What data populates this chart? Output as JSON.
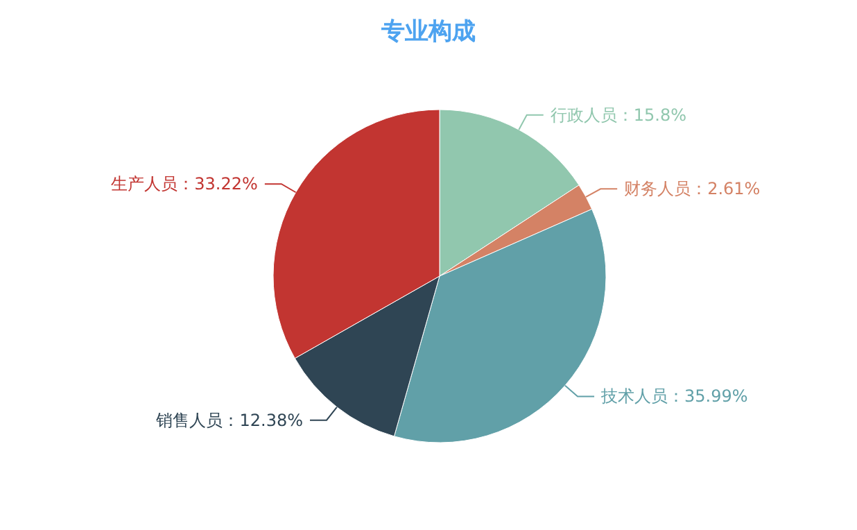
{
  "chart_data": {
    "type": "pie",
    "title": "专业构成",
    "categories": [
      "行政人员",
      "财务人员",
      "技术人员",
      "销售人员",
      "生产人员"
    ],
    "values": [
      15.8,
      2.61,
      35.99,
      12.38,
      33.22
    ],
    "value_labels": [
      "15.8%",
      "2.61%",
      "35.99%",
      "12.38%",
      "33.22%"
    ],
    "colors": [
      "#91c7ae",
      "#d48265",
      "#61a0a8",
      "#2f4554",
      "#c23531"
    ]
  }
}
